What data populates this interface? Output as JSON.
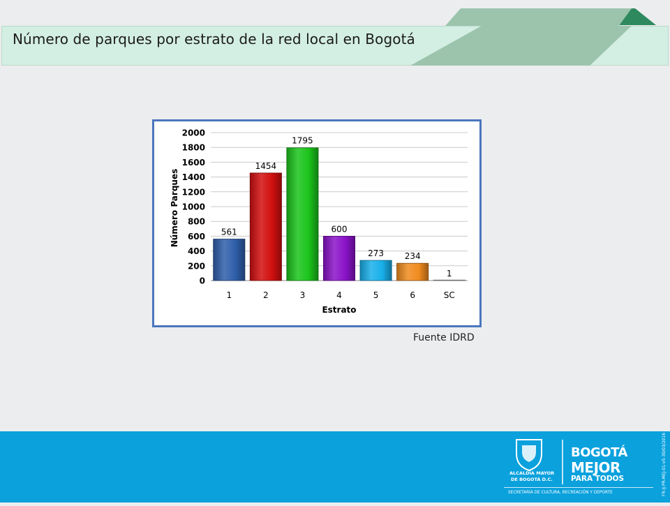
{
  "header": {
    "title": "Número de parques por estrato de la red local en Bogotá"
  },
  "chart_data": {
    "type": "bar",
    "categories": [
      "1",
      "2",
      "3",
      "4",
      "5",
      "6",
      "SC"
    ],
    "values": [
      561,
      1454,
      1795,
      600,
      273,
      234,
      1
    ],
    "data_labels": [
      "561",
      "1454",
      "1795",
      "600",
      "273",
      "234",
      "1"
    ],
    "bar_colors": [
      "#2f5faa",
      "#d20f0f",
      "#1bc41b",
      "#8a12c9",
      "#18b0ea",
      "#f08b1e",
      "#cccccc"
    ],
    "xlabel": "Estrato",
    "ylabel": "Número Parques",
    "ylim": [
      0,
      2000
    ],
    "yticks": [
      0,
      200,
      400,
      600,
      800,
      1000,
      1200,
      1400,
      1600,
      1800,
      2000
    ],
    "grid": true,
    "legend": "none"
  },
  "source_note": "Fuente IDRD",
  "footer": {
    "logo_left_line1": "ALCALDÍA MAYOR",
    "logo_left_line2": "DE BOGOTÁ D.C.",
    "logo_right_line1": "BOGOTÁ",
    "logo_right_line2": "MEJOR",
    "logo_right_line3": "PARA TODOS",
    "secretaria": "SECRETARÍA DE CULTURA, RECREACIÓN Y DEPORTE",
    "code": "FR-IJ-PR-MEJ-01-v5-30/03/2016"
  },
  "colors": {
    "title_band": "#d3eee2",
    "deco_dark": "#2e8a5e",
    "deco_light": "#9cc4ad",
    "footer": "#0aa1dd",
    "chart_border": "#4a77bd"
  }
}
